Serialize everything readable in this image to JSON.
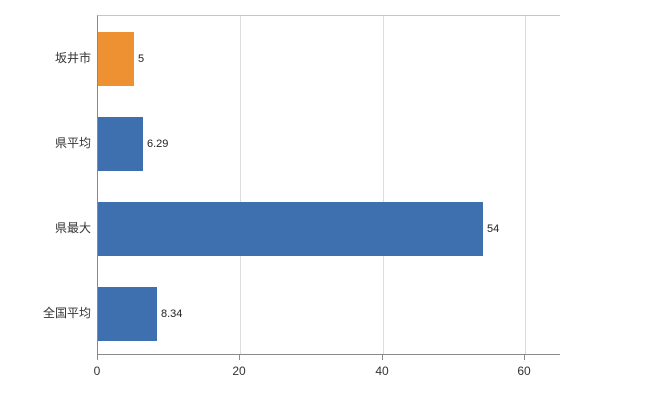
{
  "chart_data": {
    "type": "bar",
    "orientation": "horizontal",
    "title": "",
    "categories": [
      "坂井市",
      "県平均",
      "県最大",
      "全国平均"
    ],
    "values": [
      5,
      6.29,
      54,
      8.34
    ],
    "value_labels": [
      "5",
      "6.29",
      "54",
      "8.34"
    ],
    "bar_colors": [
      "#ed9133",
      "#3e6fae",
      "#3e6fae",
      "#3e6fae"
    ],
    "xlim": [
      0,
      65
    ],
    "x_ticks": [
      0,
      20,
      40,
      60
    ],
    "x_tick_labels": [
      "0",
      "20",
      "40",
      "60"
    ],
    "grid": true,
    "legend": false,
    "colors": {
      "highlight_bar": "#ed9133",
      "default_bar": "#3e6fae",
      "axis": "#8a8a8a",
      "gridline": "#dcdcdc"
    }
  }
}
